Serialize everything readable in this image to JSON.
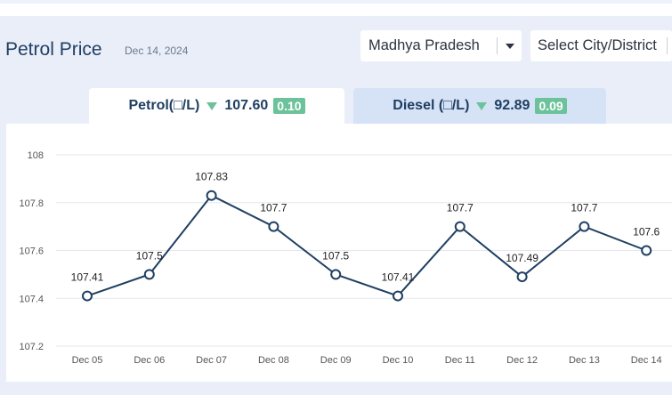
{
  "header": {
    "title": "Petrol Price",
    "date": "Dec 14, 2024"
  },
  "filters": {
    "state_value": "Madhya Pradesh",
    "city_placeholder": "Select City/District"
  },
  "tabs": [
    {
      "label": "Petrol(□/L)",
      "price": "107.60",
      "change": "0.10",
      "active": true
    },
    {
      "label": "Diesel (□/L)",
      "price": "92.89",
      "change": "0.09",
      "active": false
    }
  ],
  "colors": {
    "line": "#1f3f62",
    "badge": "#6cc29a",
    "grid": "#e3e7ee"
  },
  "chart_data": {
    "type": "line",
    "categories": [
      "Dec 05",
      "Dec 06",
      "Dec 07",
      "Dec 08",
      "Dec 09",
      "Dec 10",
      "Dec 11",
      "Dec 12",
      "Dec 13",
      "Dec 14"
    ],
    "series": [
      {
        "values": [
          107.41,
          107.5,
          107.83,
          107.7,
          107.5,
          107.41,
          107.7,
          107.49,
          107.7,
          107.6
        ]
      }
    ],
    "data_labels": [
      "107.41",
      "107.5",
      "107.83",
      "107.7",
      "107.5",
      "107.41",
      "107.7",
      "107.49",
      "107.7",
      "107.6"
    ],
    "ylim": [
      107.2,
      108
    ],
    "yticks": [
      "108",
      "107.8",
      "107.6",
      "107.4",
      "107.2"
    ],
    "grid": true
  }
}
